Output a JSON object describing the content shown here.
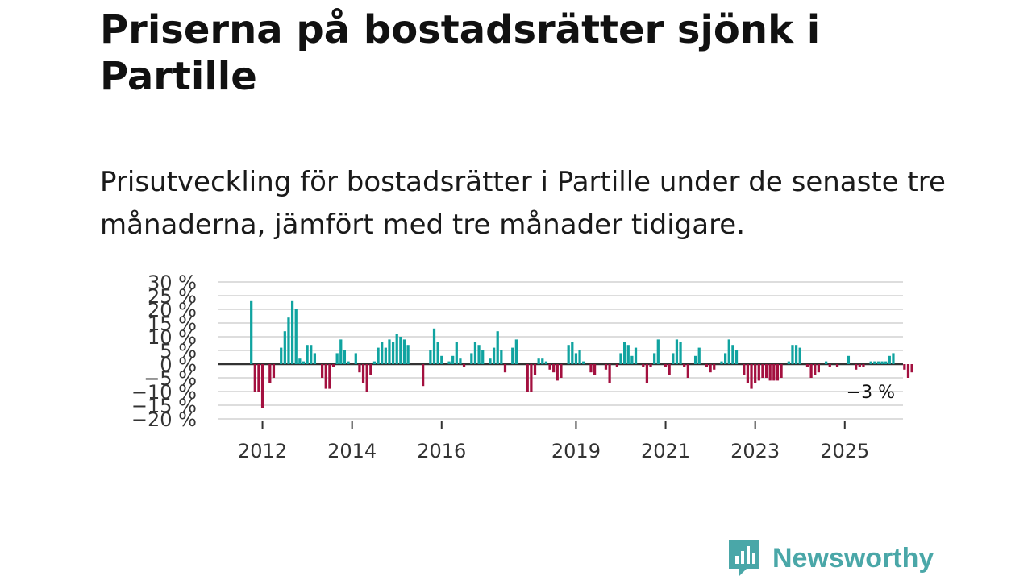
{
  "title": "Priserna på bostadsrätter sjönk i Partille",
  "subtitle": "Prisutveckling för bostadsrätter i Partille under de senaste tre månaderna, jämfört med tre månader tidigare.",
  "brand": {
    "name": "Newsworthy",
    "color": "#4aa7a8",
    "icon": "newsworthy-logo-icon"
  },
  "colors": {
    "positive": "#10a3a0",
    "negative": "#a3103f",
    "grid": "#dddddd",
    "zero": "#333333"
  },
  "chart_data": {
    "type": "bar",
    "title": "",
    "xlabel": "",
    "ylabel": "",
    "ylim": [
      -20,
      30
    ],
    "yticks": [
      30,
      25,
      20,
      15,
      10,
      5,
      0,
      -5,
      -10,
      -15,
      -20
    ],
    "ytick_labels": [
      "30 %",
      "25 %",
      "20 %",
      "15 %",
      "10 %",
      "5 %",
      "0 %",
      "−5 %",
      "−10 %",
      "−15 %",
      "−20 %"
    ],
    "xrange": [
      2011.0,
      2026.3
    ],
    "xticks": [
      2012,
      2014,
      2016,
      2019,
      2021,
      2023,
      2025
    ],
    "xtick_labels": [
      "2012",
      "2014",
      "2016",
      "2019",
      "2021",
      "2023",
      "2025"
    ],
    "start": 2011.0,
    "step": 0.0833333,
    "annotation": {
      "text": "−3 %",
      "value": -3
    },
    "values": [
      0,
      0,
      0,
      0,
      0,
      0,
      0,
      0,
      0,
      23,
      -10,
      -10,
      -16,
      0,
      -7,
      -5,
      0,
      6,
      12,
      17,
      23,
      20,
      2,
      1,
      7,
      7,
      4,
      0,
      -5,
      -9,
      -9,
      -1,
      4,
      9,
      5,
      1,
      0,
      4,
      -3,
      -7,
      -10,
      -4,
      1,
      6,
      8,
      6,
      9,
      8,
      11,
      10,
      9,
      7,
      0,
      0,
      0,
      -8,
      0,
      5,
      13,
      8,
      3,
      0,
      1,
      3,
      8,
      2,
      -1,
      0,
      4,
      8,
      7,
      5,
      0,
      2,
      6,
      12,
      5,
      -3,
      0,
      6,
      9,
      0,
      0,
      -10,
      -10,
      -4,
      2,
      2,
      1,
      -2,
      -3,
      -6,
      -5,
      0,
      7,
      8,
      4,
      5,
      1,
      0,
      -3,
      -4,
      0,
      0,
      -2,
      -7,
      0,
      -1,
      4,
      8,
      7,
      3,
      6,
      0,
      -1,
      -7,
      -1,
      4,
      9,
      0,
      -1,
      -4,
      4,
      9,
      8,
      -1,
      -5,
      0,
      3,
      6,
      0,
      -1,
      -3,
      -2,
      0,
      1,
      4,
      9,
      7,
      5,
      0,
      -4,
      -7,
      -9,
      -7,
      -6,
      -5,
      -5,
      -6,
      -6,
      -6,
      -5,
      0,
      1,
      7,
      7,
      6,
      0,
      -1,
      -5,
      -4,
      -3,
      0,
      1,
      -1,
      0,
      -1,
      0,
      0,
      3,
      0,
      -2,
      -1,
      -1,
      0,
      1,
      1,
      1,
      1,
      1,
      3,
      4,
      0,
      0,
      -2,
      -5,
      -3
    ]
  }
}
